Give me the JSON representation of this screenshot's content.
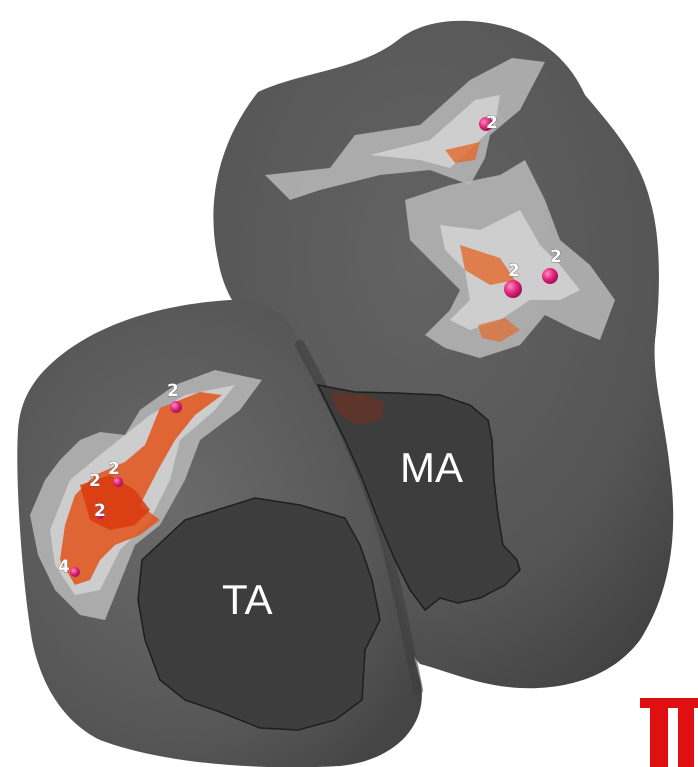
{
  "regions": {
    "mitral_annulus": "MA",
    "tricuspid_annulus": "TA"
  },
  "markers": [
    {
      "label": "2"
    },
    {
      "label": "2"
    },
    {
      "label": "2"
    },
    {
      "label": "2"
    },
    {
      "label": "2"
    },
    {
      "label": "2"
    },
    {
      "label": "2"
    },
    {
      "label": "4"
    }
  ],
  "colors": {
    "surface": "#595959",
    "annulus": "#3c3c3c",
    "halo": "#b8b8b8",
    "activation": "#e2521a",
    "marker": "#e0237a",
    "corner_glyph": "#e01010"
  },
  "corner_glyph": {
    "icon": "partial-red-glyph"
  }
}
